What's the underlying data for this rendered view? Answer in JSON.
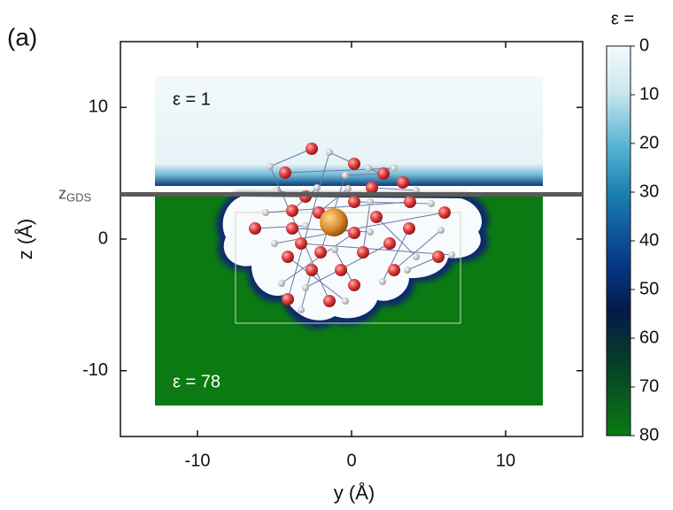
{
  "chart_data": {
    "type": "heatmap",
    "panel_label": "(a)",
    "xlabel": "y (Å)",
    "ylabel": "z (Å)",
    "xlim": [
      -15,
      15
    ],
    "xticks": [
      -10,
      0,
      10
    ],
    "ylim": [
      -15,
      15
    ],
    "yticks": [
      -10,
      0,
      10
    ],
    "annotations": [
      "ε = 1",
      "ε = 78"
    ],
    "interface": {
      "label": "z",
      "subscript": "GDS",
      "z": 3.4
    },
    "colorbar": {
      "title": "ε =",
      "lim": [
        0,
        80
      ],
      "ticks": [
        0,
        10,
        20,
        30,
        40,
        50,
        60,
        70,
        80
      ]
    }
  }
}
